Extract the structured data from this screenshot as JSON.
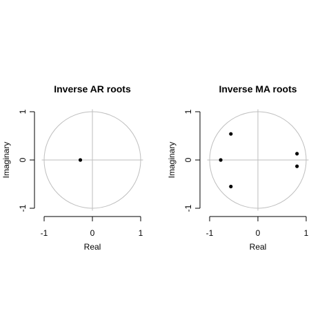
{
  "chart_data": [
    {
      "type": "scatter",
      "title": "Inverse AR roots",
      "xlabel": "Real",
      "ylabel": "Imaginary",
      "xlim": [
        -1,
        1
      ],
      "ylim": [
        -1,
        1
      ],
      "xticks": [
        "-1",
        "0",
        "1"
      ],
      "yticks": [
        "-1",
        "0",
        "1"
      ],
      "unit_circle": true,
      "reference_lines": {
        "x": 0,
        "y": 0
      },
      "circle_color": "#bebebe",
      "point_color": "#000000",
      "points": [
        {
          "x": -0.25,
          "y": 0.0
        }
      ]
    },
    {
      "type": "scatter",
      "title": "Inverse MA roots",
      "xlabel": "Real",
      "ylabel": "Imaginary",
      "xlim": [
        -1,
        1
      ],
      "ylim": [
        -1,
        1
      ],
      "xticks": [
        "-1",
        "0",
        "1"
      ],
      "yticks": [
        "-1",
        "0",
        "1"
      ],
      "unit_circle": true,
      "reference_lines": {
        "x": 0,
        "y": 0
      },
      "circle_color": "#bebebe",
      "point_color": "#000000",
      "points": [
        {
          "x": -0.56,
          "y": 0.54
        },
        {
          "x": -0.77,
          "y": 0.0
        },
        {
          "x": -0.56,
          "y": -0.55
        },
        {
          "x": 0.81,
          "y": 0.13
        },
        {
          "x": 0.81,
          "y": -0.13
        }
      ]
    }
  ]
}
